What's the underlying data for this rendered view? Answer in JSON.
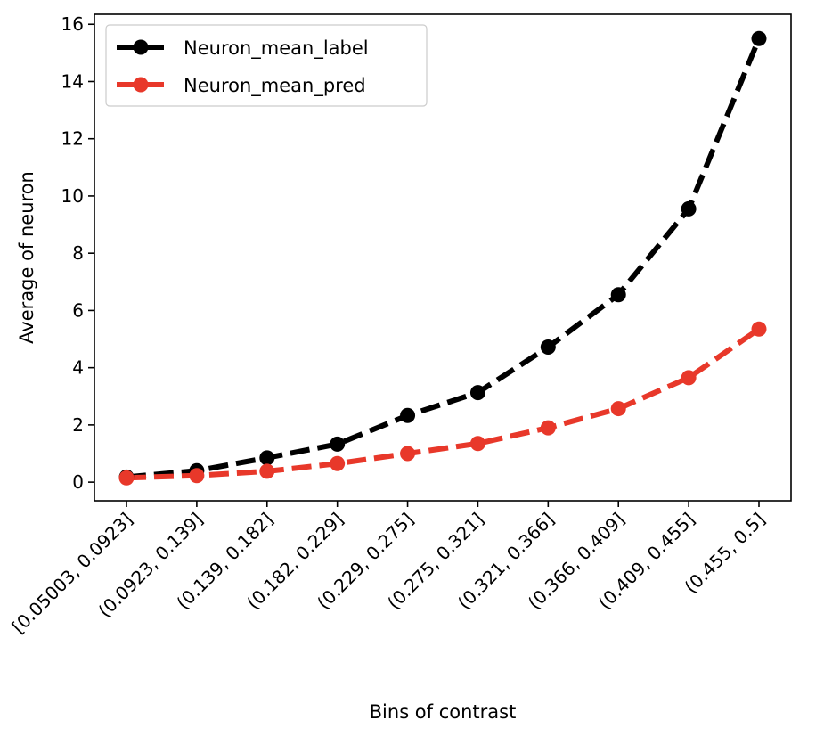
{
  "chart_data": {
    "type": "line",
    "title": "",
    "xlabel": "Bins of contrast",
    "ylabel": "Average of neuron",
    "categories": [
      "[0.05003,  0.0923]",
      "(0.0923, 0.139]",
      "(0.139, 0.182]",
      "(0.182, 0.229]",
      "(0.229, 0.275]",
      "(0.275, 0.321]",
      "(0.321, 0.366]",
      "(0.366, 0.409]",
      "(0.409, 0.455]",
      "(0.455, 0.5]"
    ],
    "ylim": [
      -0.65,
      16.35
    ],
    "yticks": [
      0,
      2,
      4,
      6,
      8,
      10,
      12,
      14,
      16
    ],
    "yticklabels": [
      "0",
      "2",
      "4",
      "6",
      "8",
      "10",
      "12",
      "14",
      "16"
    ],
    "grid": false,
    "legend_position": "top-left",
    "series": [
      {
        "name": "Neuron_mean_label",
        "color": "#000000",
        "line_style": "dashed",
        "marker": "circle",
        "values": [
          0.18,
          0.4,
          0.85,
          1.33,
          2.33,
          3.13,
          4.72,
          6.55,
          9.55,
          15.5
        ]
      },
      {
        "name": "Neuron_mean_pred",
        "color": "#e8382a",
        "line_style": "dashed",
        "marker": "circle",
        "values": [
          0.15,
          0.23,
          0.38,
          0.65,
          1.0,
          1.35,
          1.9,
          2.57,
          3.65,
          5.35
        ]
      }
    ]
  }
}
